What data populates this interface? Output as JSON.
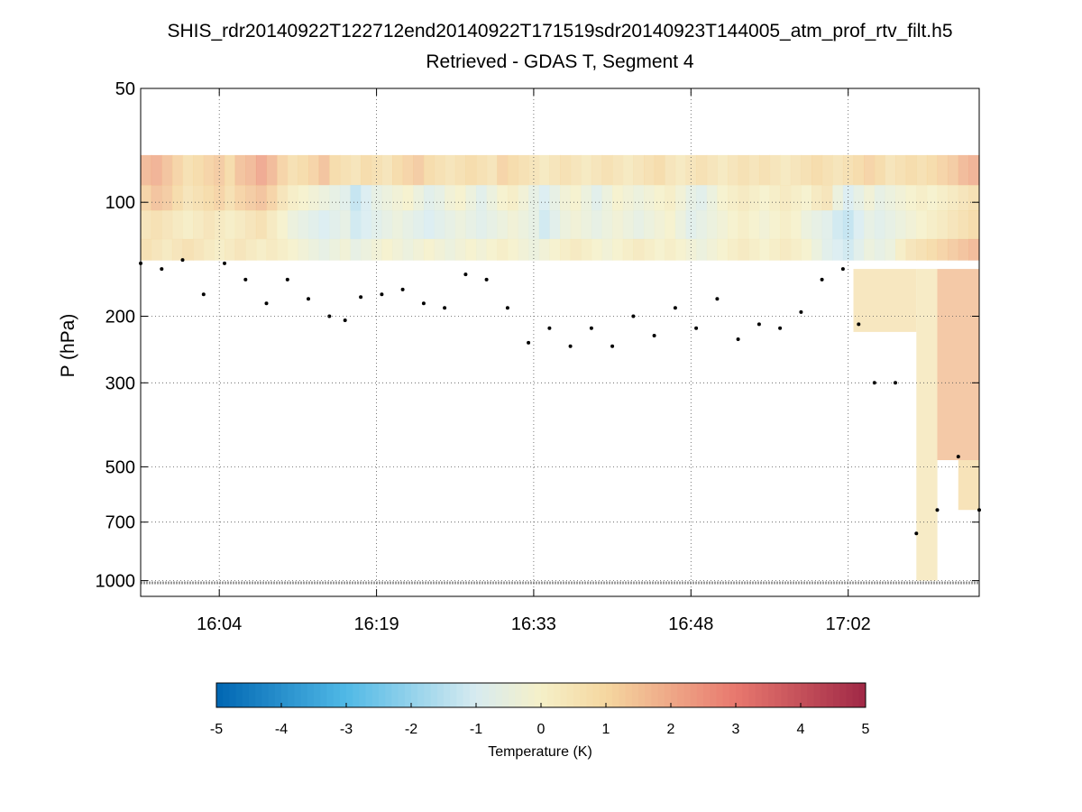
{
  "chart_data": {
    "type": "heatmap",
    "title": "SHIS_rdr20140922T122712end20140922T171519sdr20140923T144005_atm_prof_rtv_filt.h5",
    "subtitle": "Retrieved - GDAS T, Segment 4",
    "ylabel": "P (hPa)",
    "xlabel": "",
    "y_scale": "log",
    "y_reversed": true,
    "ylim": [
      50,
      1100
    ],
    "y_ticks": [
      50,
      100,
      200,
      300,
      500,
      700,
      1000
    ],
    "y_tick_labels": [
      "50",
      "100",
      "200",
      "300",
      "500",
      "700",
      "1000"
    ],
    "xlim_minutes": [
      0,
      80
    ],
    "x_tick_positions_minutes": [
      7.5,
      22.5,
      37.5,
      52.5,
      67.5
    ],
    "x_tick_labels": [
      "16:04",
      "16:19",
      "16:33",
      "16:48",
      "17:02"
    ],
    "grid": true,
    "colorbar": {
      "label": "Temperature (K)",
      "min": -5,
      "max": 5,
      "ticks": [
        -5,
        -4,
        -3,
        -2,
        -1,
        0,
        1,
        2,
        3,
        4,
        5
      ],
      "tick_labels": [
        "-5",
        "-4",
        "-3",
        "-2",
        "-1",
        "0",
        "1",
        "2",
        "3",
        "4",
        "5"
      ]
    },
    "data_top_pressure": 75,
    "cloud_top_series": {
      "name": "cloud top pressure (hPa)",
      "minutes": [
        0,
        2,
        4,
        6,
        8,
        10,
        12,
        14,
        16,
        18,
        19.5,
        21,
        23,
        25,
        27,
        29,
        31,
        33,
        35,
        37,
        39,
        41,
        43,
        45,
        47,
        49,
        51,
        53,
        55,
        57,
        59,
        61,
        63,
        65,
        67,
        68.5,
        70,
        72,
        74,
        76,
        78,
        80
      ],
      "values": [
        145,
        150,
        142,
        175,
        145,
        160,
        185,
        160,
        180,
        200,
        205,
        178,
        175,
        170,
        185,
        190,
        155,
        160,
        190,
        235,
        215,
        240,
        215,
        240,
        200,
        225,
        190,
        215,
        180,
        230,
        210,
        215,
        195,
        160,
        150,
        210,
        300,
        300,
        750,
        650,
        470,
        650
      ]
    },
    "surface_pressure": 1013,
    "cells": {
      "time_step_minutes": 1,
      "pressure_bins": [
        {
          "p_top": 75,
          "p_bottom": 90,
          "values": [
            1.8,
            2.0,
            1.6,
            1.2,
            0.8,
            1.0,
            1.2,
            1.4,
            1.0,
            1.6,
            1.8,
            2.2,
            1.8,
            1.2,
            0.8,
            1.0,
            1.2,
            1.6,
            1.0,
            0.8,
            0.6,
            1.0,
            0.8,
            0.6,
            1.0,
            1.2,
            1.4,
            1.0,
            0.8,
            0.6,
            0.8,
            1.0,
            0.8,
            0.6,
            1.2,
            1.0,
            0.8,
            0.6,
            0.4,
            0.6,
            0.8,
            0.6,
            0.4,
            0.6,
            0.8,
            0.6,
            0.4,
            0.6,
            0.8,
            1.0,
            0.6,
            0.4,
            0.6,
            0.8,
            0.6,
            0.4,
            0.6,
            0.8,
            0.6,
            0.8,
            0.6,
            0.4,
            0.6,
            0.8,
            1.0,
            0.8,
            0.6,
            0.8,
            1.0,
            1.2,
            1.0,
            0.6,
            0.8,
            1.0,
            0.8,
            1.0,
            1.2,
            1.4,
            1.8,
            2.0
          ]
        },
        {
          "p_top": 90,
          "p_bottom": 105,
          "values": [
            1.2,
            1.6,
            1.4,
            1.0,
            0.6,
            0.8,
            1.0,
            1.2,
            0.8,
            1.2,
            1.4,
            1.6,
            1.2,
            0.6,
            0.2,
            0.0,
            -0.2,
            -0.4,
            -0.6,
            -0.8,
            -1.4,
            -1.0,
            -0.6,
            -0.4,
            -0.2,
            0.0,
            -0.4,
            -0.8,
            -0.6,
            -0.2,
            0.0,
            -0.4,
            -0.8,
            -0.4,
            0.0,
            0.2,
            -0.2,
            -0.6,
            -1.0,
            -0.6,
            -0.2,
            0.0,
            -0.4,
            -0.8,
            -0.4,
            0.0,
            -0.2,
            -0.4,
            -0.2,
            0.0,
            0.2,
            -0.2,
            -0.6,
            -0.8,
            -0.4,
            0.0,
            0.2,
            0.4,
            0.2,
            0.0,
            0.2,
            0.4,
            0.2,
            0.0,
            0.4,
            0.6,
            -0.4,
            -1.0,
            -0.6,
            -0.2,
            -0.6,
            -0.4,
            -0.2,
            0.0,
            0.2,
            0.0,
            0.2,
            0.4,
            0.6,
            0.8
          ]
        },
        {
          "p_top": 105,
          "p_bottom": 125,
          "values": [
            0.6,
            0.8,
            0.6,
            0.4,
            0.2,
            0.4,
            0.6,
            0.4,
            0.2,
            0.4,
            0.6,
            0.8,
            0.4,
            0.0,
            -0.4,
            -0.6,
            -0.8,
            -1.0,
            -0.8,
            -0.6,
            -1.2,
            -1.0,
            -0.8,
            -0.6,
            -0.4,
            -0.6,
            -0.8,
            -1.0,
            -0.8,
            -0.6,
            -0.4,
            -0.6,
            -0.8,
            -0.6,
            -0.4,
            -0.2,
            -0.4,
            -0.6,
            -1.2,
            -0.8,
            -0.4,
            -0.2,
            -0.4,
            -0.6,
            -0.4,
            -0.2,
            -0.4,
            -0.6,
            -0.4,
            -0.2,
            0.0,
            -0.4,
            -0.8,
            -0.6,
            -0.4,
            -0.2,
            0.0,
            0.2,
            0.0,
            -0.2,
            0.0,
            0.2,
            0.0,
            -0.4,
            -0.6,
            -0.8,
            -1.2,
            -1.4,
            -1.0,
            -0.6,
            -0.8,
            -0.6,
            -0.4,
            -0.2,
            0.0,
            0.2,
            0.4,
            0.6,
            0.8,
            1.0
          ]
        },
        {
          "p_top": 125,
          "p_bottom": 142,
          "values": [
            0.8,
            0.6,
            0.4,
            0.6,
            0.8,
            0.6,
            0.4,
            0.2,
            0.4,
            0.6,
            0.4,
            0.2,
            0.4,
            0.2,
            0.0,
            -0.2,
            -0.4,
            -0.6,
            -0.4,
            -0.2,
            -0.6,
            -0.4,
            -0.2,
            0.0,
            -0.2,
            -0.4,
            -0.2,
            0.0,
            -0.2,
            -0.4,
            -0.2,
            0.0,
            -0.2,
            0.0,
            0.2,
            0.0,
            -0.2,
            -0.4,
            -0.2,
            0.0,
            0.2,
            0.4,
            0.2,
            0.0,
            -0.2,
            0.0,
            0.2,
            0.4,
            0.2,
            0.0,
            0.2,
            0.0,
            -0.2,
            -0.4,
            -0.2,
            0.0,
            0.2,
            0.4,
            0.2,
            0.0,
            0.2,
            0.4,
            0.2,
            0.0,
            -0.4,
            -0.8,
            -1.0,
            -1.2,
            -0.8,
            -0.4,
            -0.6,
            -0.4,
            0.2,
            0.6,
            0.8,
            1.0,
            1.2,
            1.4,
            1.6,
            1.8
          ]
        }
      ]
    }
  }
}
